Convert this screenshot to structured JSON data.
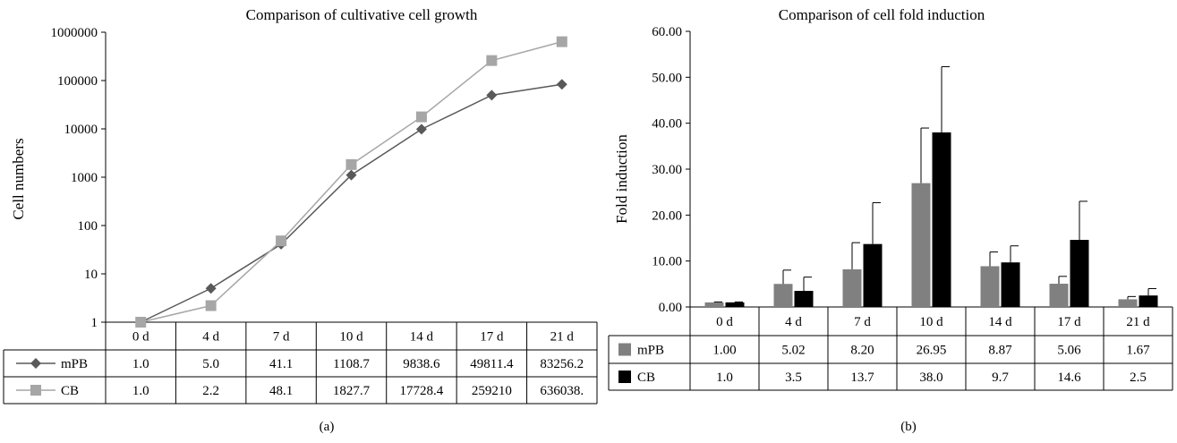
{
  "panels": [
    {
      "title": "Comparison of cultivative cell growth",
      "caption": "(a)",
      "chart_data": {
        "type": "line",
        "ylabel": "Cell numbers",
        "yscale": "log",
        "ylim": [
          1,
          1000000
        ],
        "yticks": [
          "1",
          "10",
          "100",
          "1000",
          "10000",
          "100000",
          "1000000"
        ],
        "categories": [
          "0 d",
          "4 d",
          "7 d",
          "10 d",
          "14 d",
          "17 d",
          "21 d"
        ],
        "series": [
          {
            "name": "mPB",
            "color": "#595959",
            "marker": "diamond",
            "values": [
              1.0,
              5.0,
              41.1,
              1108.7,
              9838.6,
              49811.4,
              83256.2
            ],
            "labels": [
              "1.0",
              "5.0",
              "41.1",
              "1108.7",
              "9838.6",
              "49811.4",
              "83256.2"
            ]
          },
          {
            "name": "CB",
            "color": "#a6a6a6",
            "marker": "square",
            "values": [
              1.0,
              2.2,
              48.1,
              1827.7,
              17728.4,
              259210,
              636038
            ],
            "labels": [
              "1.0",
              "2.2",
              "48.1",
              "1827.7",
              "17728.4",
              "259210",
              "636038."
            ]
          }
        ]
      }
    },
    {
      "title": "Comparison of cell fold induction",
      "caption": "(b)",
      "chart_data": {
        "type": "bar",
        "ylabel": "Fold induction",
        "ylim": [
          0,
          60
        ],
        "yticks": [
          "0.00",
          "10.00",
          "20.00",
          "30.00",
          "40.00",
          "50.00",
          "60.00"
        ],
        "categories": [
          "0 d",
          "4 d",
          "7 d",
          "10 d",
          "14 d",
          "17 d",
          "21 d"
        ],
        "series": [
          {
            "name": "mPB",
            "color": "#808080",
            "values": [
              1.0,
              5.02,
              8.2,
              26.95,
              8.87,
              5.06,
              1.67
            ],
            "errors": [
              0.1,
              3.0,
              5.8,
              12.0,
              3.1,
              1.6,
              0.6
            ],
            "labels": [
              "1.00",
              "5.02",
              "8.20",
              "26.95",
              "8.87",
              "5.06",
              "1.67"
            ]
          },
          {
            "name": "CB",
            "color": "#000000",
            "values": [
              1.0,
              3.5,
              13.7,
              38.0,
              9.7,
              14.6,
              2.5
            ],
            "errors": [
              0.1,
              3.0,
              9.0,
              14.3,
              3.6,
              8.4,
              1.5
            ],
            "labels": [
              "1.0",
              "3.5",
              "13.7",
              "38.0",
              "9.7",
              "14.6",
              "2.5"
            ]
          }
        ]
      }
    }
  ]
}
